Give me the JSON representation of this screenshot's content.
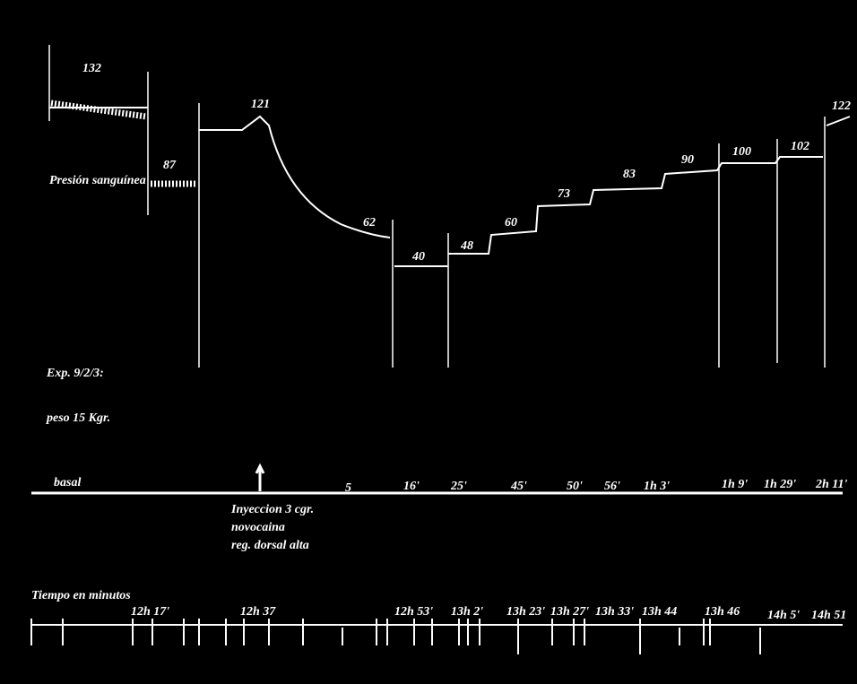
{
  "trace": {
    "label": "Presión sanguínea",
    "pressures": [
      "132",
      "87",
      "121",
      "62",
      "40",
      "48",
      "60",
      "73",
      "83",
      "90",
      "100",
      "102",
      "122"
    ]
  },
  "experiment": {
    "title": "Exp. 9/2/3:",
    "weight": "peso 15 Kgr."
  },
  "events": {
    "labels": [
      "basal",
      "5",
      "16'",
      "25'",
      "45'",
      "50'",
      "56'",
      "1h 3'",
      "1h 9'",
      "1h 29'",
      "2h 11'"
    ],
    "injection": [
      "Inyeccion 3 cgr.",
      "novocaina",
      "reg. dorsal alta"
    ]
  },
  "time": {
    "title": "Tiempo en minutos",
    "labels": [
      "12h 17'",
      "12h 37",
      "12h 53'",
      "13h 2'",
      "13h 23'",
      "13h 27'",
      "13h 33'",
      "13h 44",
      "13h 46",
      "14h 5'",
      "14h 51"
    ]
  }
}
